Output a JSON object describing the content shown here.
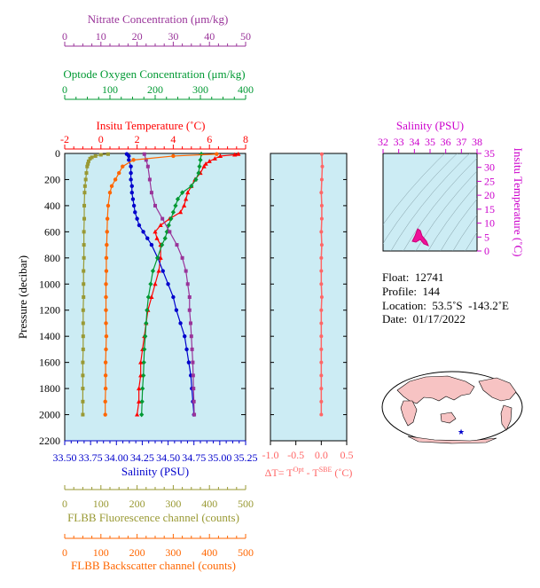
{
  "chart_data": {
    "type": "line",
    "y_axis": {
      "label": "Pressure (decibar)",
      "range": [
        0,
        2200
      ],
      "ticks": [
        "0",
        "200",
        "400",
        "600",
        "800",
        "1000",
        "1200",
        "1400",
        "1600",
        "1800",
        "2000",
        "2200"
      ]
    },
    "axes": {
      "nitrate": {
        "label": "Nitrate Concentration (μm/kg)",
        "range": [
          0,
          50
        ],
        "ticks": [
          "0",
          "10",
          "20",
          "30",
          "40",
          "50"
        ],
        "color": "#993399"
      },
      "oxygen": {
        "label": "Optode Oxygen Concentration (μm/kg)",
        "range": [
          0,
          400
        ],
        "ticks": [
          "0",
          "100",
          "200",
          "300",
          "400"
        ],
        "color": "#009933"
      },
      "temperature": {
        "label": "Insitu Temperature (˚C)",
        "range": [
          -2,
          8
        ],
        "ticks": [
          "-2",
          "0",
          "2",
          "4",
          "6",
          "8"
        ],
        "color": "#ff0000"
      },
      "salinity": {
        "label": "Salinity (PSU)",
        "range": [
          33.5,
          35.25
        ],
        "ticks": [
          "33.50",
          "33.75",
          "34.00",
          "34.25",
          "34.50",
          "34.75",
          "35.00",
          "35.25"
        ],
        "color": "#0000cc"
      },
      "fluorescence": {
        "label": "FLBB Fluorescence channel (counts)",
        "range": [
          0,
          500
        ],
        "ticks": [
          "0",
          "100",
          "200",
          "300",
          "400",
          "500"
        ],
        "color": "#999933"
      },
      "backscatter": {
        "label": "FLBB Backscatter channel (counts)",
        "range": [
          0,
          500
        ],
        "ticks": [
          "0",
          "100",
          "200",
          "300",
          "400",
          "500"
        ],
        "color": "#ff6600"
      }
    },
    "series": [
      {
        "key": "temperature",
        "color": "#ff0000",
        "marker": "triangle",
        "p": [
          5,
          10,
          20,
          40,
          60,
          80,
          100,
          150,
          200,
          250,
          300,
          350,
          400,
          450,
          500,
          550,
          600,
          650,
          700,
          800,
          900,
          1000,
          1100,
          1200,
          1300,
          1400,
          1500,
          1600,
          1700,
          1800,
          1900,
          2000
        ],
        "v": [
          7.6,
          7.4,
          6.6,
          6.3,
          6.0,
          5.8,
          5.7,
          5.5,
          5.2,
          5.0,
          4.8,
          4.7,
          4.6,
          4.4,
          3.8,
          3.3,
          3.0,
          3.1,
          3.3,
          3.3,
          3.2,
          3.0,
          2.8,
          2.6,
          2.5,
          2.4,
          2.3,
          2.2,
          2.2,
          2.1,
          2.1,
          2.0
        ]
      },
      {
        "key": "salinity",
        "color": "#0000cc",
        "marker": "circle",
        "p": [
          5,
          20,
          50,
          100,
          150,
          200,
          250,
          300,
          350,
          400,
          450,
          500,
          550,
          600,
          650,
          700,
          800,
          900,
          1000,
          1100,
          1200,
          1300,
          1400,
          1500,
          1600,
          1700,
          1800,
          1900,
          2000
        ],
        "v": [
          34.1,
          34.12,
          34.12,
          34.14,
          34.14,
          34.14,
          34.15,
          34.15,
          34.16,
          34.17,
          34.18,
          34.2,
          34.22,
          34.26,
          34.3,
          34.34,
          34.4,
          34.45,
          34.5,
          34.55,
          34.58,
          34.62,
          34.66,
          34.68,
          34.7,
          34.72,
          34.73,
          34.74,
          34.75
        ]
      },
      {
        "key": "oxygen",
        "color": "#009933",
        "marker": "diamond",
        "p": [
          5,
          50,
          100,
          150,
          200,
          250,
          300,
          350,
          400,
          450,
          500,
          550,
          600,
          650,
          700,
          800,
          900,
          1000,
          1100,
          1200,
          1300,
          1400,
          1500,
          1600,
          1700,
          1800,
          1900,
          2000
        ],
        "v": [
          302,
          300,
          298,
          296,
          290,
          280,
          260,
          250,
          245,
          240,
          235,
          230,
          226,
          222,
          215,
          205,
          195,
          190,
          185,
          182,
          180,
          178,
          176,
          175,
          174,
          172,
          171,
          170
        ]
      },
      {
        "key": "nitrate",
        "color": "#993399",
        "marker": "square",
        "p": [
          5,
          50,
          100,
          200,
          300,
          400,
          500,
          600,
          700,
          800,
          900,
          1000,
          1100,
          1200,
          1300,
          1400,
          1500,
          1600,
          1700,
          1800,
          1900,
          2000
        ],
        "v": [
          22,
          22.5,
          23,
          23.5,
          24,
          25,
          27,
          29,
          31,
          32.5,
          33.5,
          34,
          34.5,
          34.5,
          34.8,
          35,
          35.2,
          35.4,
          35.5,
          35.6,
          35.7,
          35.8
        ]
      },
      {
        "key": "fluorescence",
        "color": "#999933",
        "marker": "square",
        "p": [
          5,
          10,
          20,
          30,
          40,
          60,
          80,
          100,
          150,
          200,
          250,
          300,
          400,
          500,
          600,
          700,
          800,
          900,
          1000,
          1100,
          1200,
          1300,
          1400,
          1500,
          1600,
          1700,
          1800,
          1900,
          2000
        ],
        "v": [
          120,
          100,
          85,
          75,
          70,
          66,
          64,
          62,
          60,
          58,
          56,
          55,
          54,
          54,
          53,
          53,
          53,
          52,
          52,
          52,
          51,
          51,
          51,
          51,
          50,
          50,
          50,
          50,
          50
        ]
      },
      {
        "key": "backscatter",
        "color": "#ff6600",
        "marker": "circle",
        "p": [
          5,
          20,
          50,
          100,
          150,
          200,
          250,
          300,
          400,
          500,
          600,
          700,
          800,
          900,
          1000,
          1100,
          1200,
          1300,
          1400,
          1500,
          1600,
          1700,
          1800,
          1900,
          2000
        ],
        "v": [
          420,
          300,
          190,
          160,
          150,
          140,
          130,
          125,
          120,
          118,
          117,
          116,
          115,
          115,
          114,
          114,
          114,
          114,
          115,
          114,
          113,
          113,
          113,
          112,
          112
        ]
      }
    ],
    "dt_panel": {
      "label_prefix": "ΔT= T",
      "label_sup1": "Opt",
      "label_mid": " - T",
      "label_sup2": "SBE",
      "label_suffix": " (˚C)",
      "range": [
        -1.0,
        0.5
      ],
      "ticks": [
        "-1.0",
        "-0.5",
        "0.0",
        "0.5"
      ],
      "color": "#ff6666",
      "p": [
        5,
        100,
        200,
        300,
        400,
        500,
        600,
        700,
        800,
        900,
        1000,
        1100,
        1200,
        1300,
        1400,
        1500,
        1600,
        1700,
        1800,
        1900,
        2000
      ],
      "v": [
        0.01,
        0.02,
        0.01,
        0.0,
        0.01,
        0.01,
        0.0,
        0.01,
        0.0,
        0.0,
        0.0,
        0.01,
        0.0,
        0.0,
        0.0,
        0.0,
        0.0,
        0.0,
        0.0,
        0.0,
        0.0
      ]
    },
    "ts_panel": {
      "x_label": "Salinity (PSU)",
      "x_ticks": [
        "32",
        "33",
        "34",
        "35",
        "36",
        "37",
        "38"
      ],
      "x_range": [
        32,
        38
      ],
      "y_label": "Insitu Temperature (˚C)",
      "y_ticks": [
        "0",
        "5",
        "10",
        "15",
        "20",
        "25",
        "30",
        "35"
      ],
      "y_range": [
        0,
        35
      ],
      "color": "#cc00cc"
    }
  },
  "info": {
    "float": "Float:  12741",
    "profile": "Profile:  144",
    "location": "Location:  53.5˚S  -143.2˚E",
    "date": "Date:  01/17/2022"
  },
  "colors": {
    "panel_bg": "#ccecf4",
    "land": "#f7c3c3",
    "ocean": "#ffffff"
  }
}
